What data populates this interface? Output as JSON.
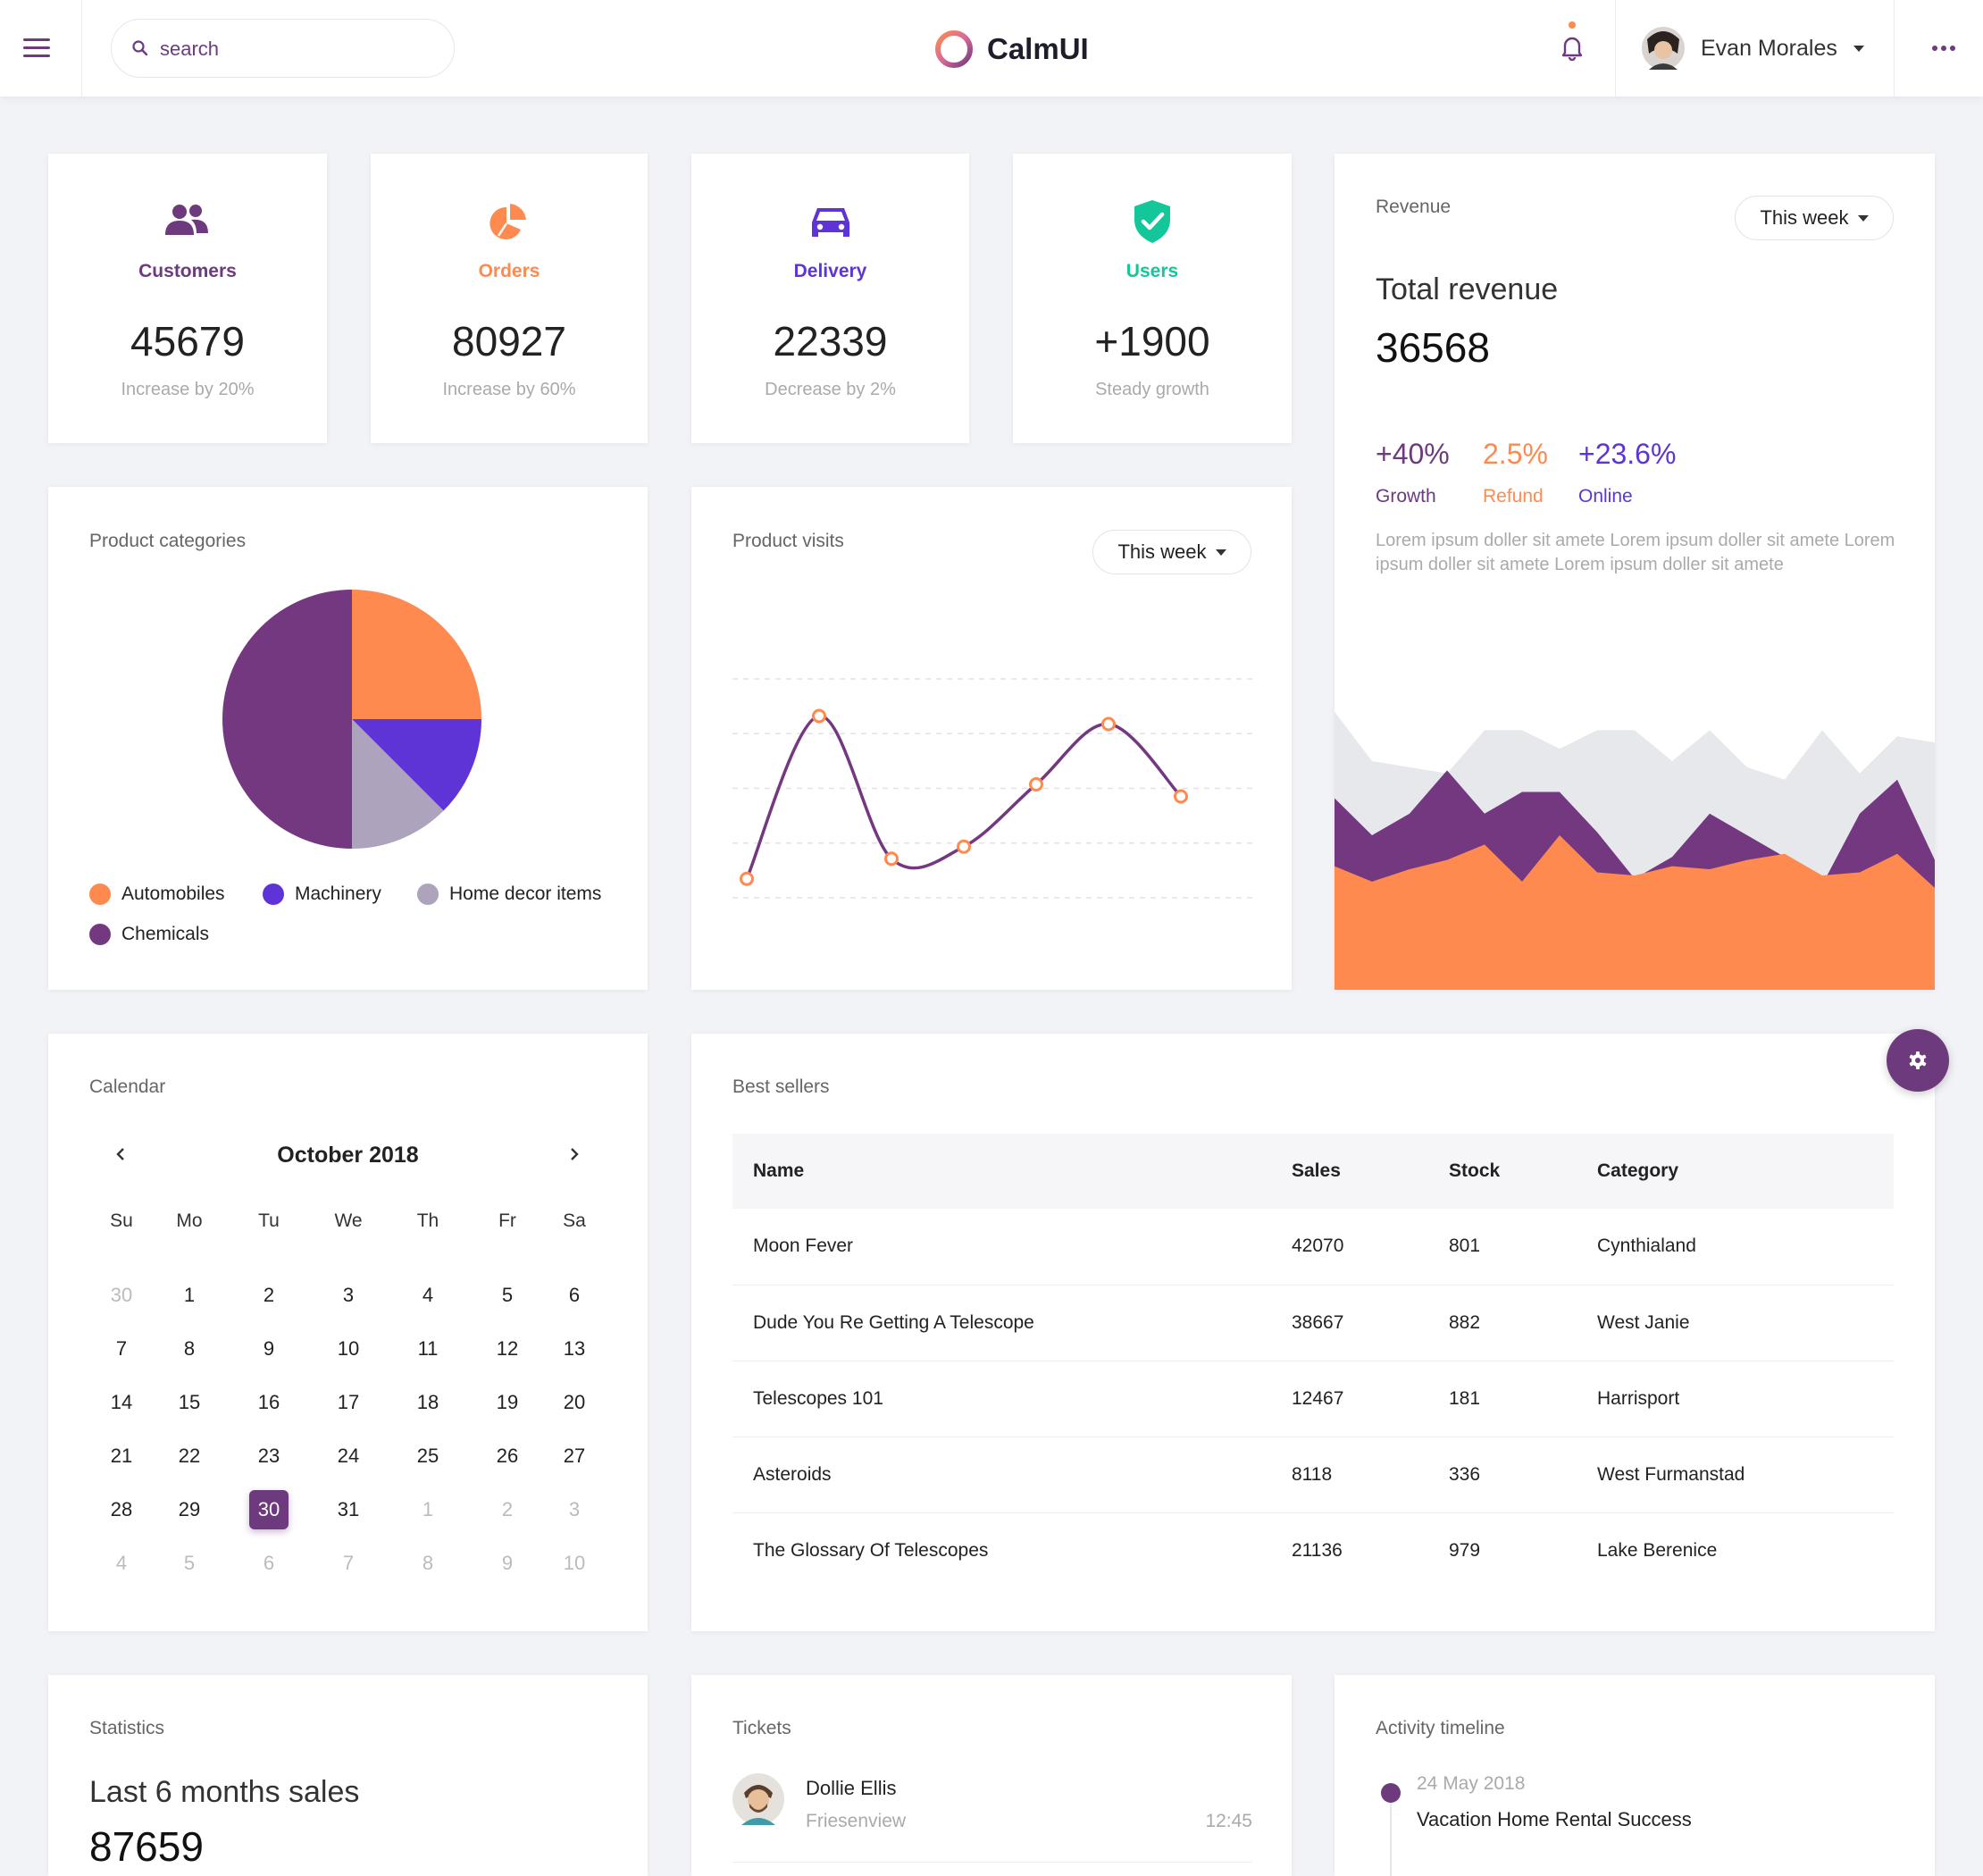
{
  "header": {
    "search_placeholder": "search",
    "brand": "CalmUI",
    "user_name": "Evan Morales"
  },
  "stats": [
    {
      "label": "Customers",
      "value": "45679",
      "sub": "Increase by 20%",
      "color": "#6d3a7e",
      "icon": "users-icon"
    },
    {
      "label": "Orders",
      "value": "80927",
      "sub": "Increase by 60%",
      "color": "#ff8a50",
      "icon": "pie-chart-icon"
    },
    {
      "label": "Delivery",
      "value": "22339",
      "sub": "Decrease by 2%",
      "color": "#5f34d6",
      "icon": "car-icon"
    },
    {
      "label": "Users",
      "value": "+1900",
      "sub": "Steady growth",
      "color": "#14c79a",
      "icon": "shield-check-icon"
    }
  ],
  "revenue": {
    "title": "Revenue",
    "period": "This week",
    "heading": "Total revenue",
    "total": "36568",
    "metrics": [
      {
        "value": "+40%",
        "label": "Growth",
        "color": "#6d3a7e"
      },
      {
        "value": "2.5%",
        "label": "Refund",
        "color": "#ff8a50"
      },
      {
        "value": "+23.6%",
        "label": "Online",
        "color": "#5f34d6"
      }
    ],
    "description": "Lorem ipsum doller sit amete Lorem ipsum doller sit amete Lorem ipsum doller sit amete Lorem ipsum doller sit amete"
  },
  "product_categories": {
    "title": "Product categories",
    "legend": [
      {
        "name": "Automobiles",
        "color": "#ff8a50"
      },
      {
        "name": "Machinery",
        "color": "#5f34d6"
      },
      {
        "name": "Home decor items",
        "color": "#aea3bd"
      },
      {
        "name": "Chemicals",
        "color": "#743880"
      }
    ]
  },
  "product_visits": {
    "title": "Product visits",
    "period": "This week"
  },
  "chart_data": [
    {
      "type": "pie",
      "title": "",
      "categories": [
        "Automobiles",
        "Machinery",
        "Home decor items",
        "Chemicals"
      ],
      "values": [
        25,
        12.5,
        12.5,
        50
      ],
      "colors": [
        "#ff8a50",
        "#5f34d6",
        "#aea3bd",
        "#743880"
      ]
    },
    {
      "type": "line",
      "title": "",
      "x": [
        1,
        2,
        3,
        4,
        5,
        6,
        7
      ],
      "series": [
        {
          "values": [
            5,
            86,
            15,
            21,
            52,
            82,
            46
          ]
        }
      ],
      "ylim": [
        0,
        100
      ],
      "grid": true,
      "colors": {
        "line": "#743880",
        "marker": "#ff8a50"
      }
    },
    {
      "type": "area",
      "title": "",
      "x": [
        1,
        2,
        3,
        4,
        5,
        6,
        7,
        8,
        9,
        10,
        11,
        12,
        13,
        14,
        15,
        16,
        17
      ],
      "series": [
        {
          "values": [
            90,
            74,
            72,
            70,
            84,
            84,
            78,
            84,
            84,
            74,
            84,
            72,
            68,
            84,
            70,
            82,
            80
          ]
        },
        {
          "values": [
            62,
            50,
            57,
            71,
            57,
            64,
            64,
            51,
            36,
            43,
            57,
            50,
            43,
            34,
            57,
            68,
            42
          ]
        },
        {
          "values": [
            40,
            35,
            39,
            42,
            47,
            35,
            50,
            38,
            37,
            40,
            39,
            42,
            44,
            37,
            38,
            44,
            33
          ]
        }
      ],
      "ylim": [
        0,
        100
      ],
      "colors": [
        "#e7e8ec",
        "#743880",
        "#ff8a50"
      ]
    }
  ],
  "calendar": {
    "title": "Calendar",
    "month": "October 2018",
    "weekdays": [
      "Su",
      "Mo",
      "Tu",
      "We",
      "Th",
      "Fr",
      "Sa"
    ],
    "weeks": [
      [
        "30",
        "1",
        "2",
        "3",
        "4",
        "5",
        "6"
      ],
      [
        "7",
        "8",
        "9",
        "10",
        "11",
        "12",
        "13"
      ],
      [
        "14",
        "15",
        "16",
        "17",
        "18",
        "19",
        "20"
      ],
      [
        "21",
        "22",
        "23",
        "24",
        "25",
        "26",
        "27"
      ],
      [
        "28",
        "29",
        "30",
        "31",
        "1",
        "2",
        "3"
      ],
      [
        "4",
        "5",
        "6",
        "7",
        "8",
        "9",
        "10"
      ]
    ],
    "selected": "30"
  },
  "best_sellers": {
    "title": "Best sellers",
    "columns": [
      "Name",
      "Sales",
      "Stock",
      "Category"
    ],
    "rows": [
      [
        "Moon Fever",
        "42070",
        "801",
        "Cynthialand"
      ],
      [
        "Dude You Re Getting A Telescope",
        "38667",
        "882",
        "West Janie"
      ],
      [
        "Telescopes 101",
        "12467",
        "181",
        "Harrisport"
      ],
      [
        "Asteroids",
        "8118",
        "336",
        "West Furmanstad"
      ],
      [
        "The Glossary Of Telescopes",
        "21136",
        "979",
        "Lake Berenice"
      ]
    ]
  },
  "statistics": {
    "title": "Statistics",
    "heading": "Last 6 months sales",
    "value": "87659"
  },
  "tickets": {
    "title": "Tickets",
    "items": [
      {
        "name": "Dollie Ellis",
        "location": "Friesenview",
        "time": "12:45"
      }
    ]
  },
  "activity": {
    "title": "Activity timeline",
    "items": [
      {
        "date": "24 May 2018",
        "text": "Vacation Home Rental Success"
      }
    ]
  }
}
